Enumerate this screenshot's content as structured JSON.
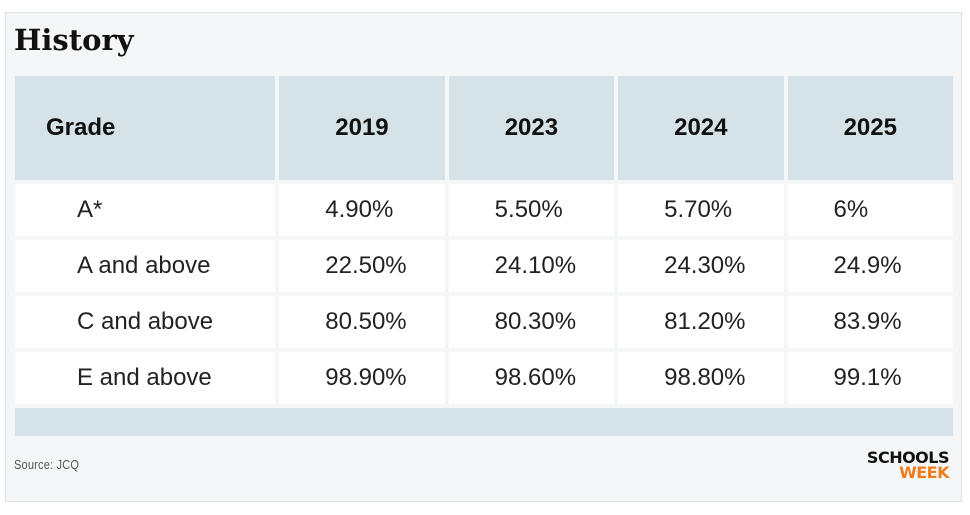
{
  "title": "History",
  "chart_data": {
    "type": "table",
    "title": "History",
    "columns": [
      "Grade",
      "2019",
      "2023",
      "2024",
      "2025"
    ],
    "rows": [
      {
        "grade": "A*",
        "values": [
          "4.90%",
          "5.50%",
          "5.70%",
          "6%"
        ]
      },
      {
        "grade": "A and above",
        "values": [
          "22.50%",
          "24.10%",
          "24.30%",
          "24.9%"
        ]
      },
      {
        "grade": "C and above",
        "values": [
          "80.50%",
          "80.30%",
          "81.20%",
          "83.9%"
        ]
      },
      {
        "grade": "E and above",
        "values": [
          "98.90%",
          "98.60%",
          "98.80%",
          "99.1%"
        ]
      }
    ]
  },
  "source": "Source: JCQ",
  "logo": {
    "line1": "SCHOOLS",
    "line2": "WEEK"
  },
  "colors": {
    "header_bg": "#d5e2e7",
    "page_bg": "#f4f6f8",
    "logo_accent": "#f07d1a"
  }
}
